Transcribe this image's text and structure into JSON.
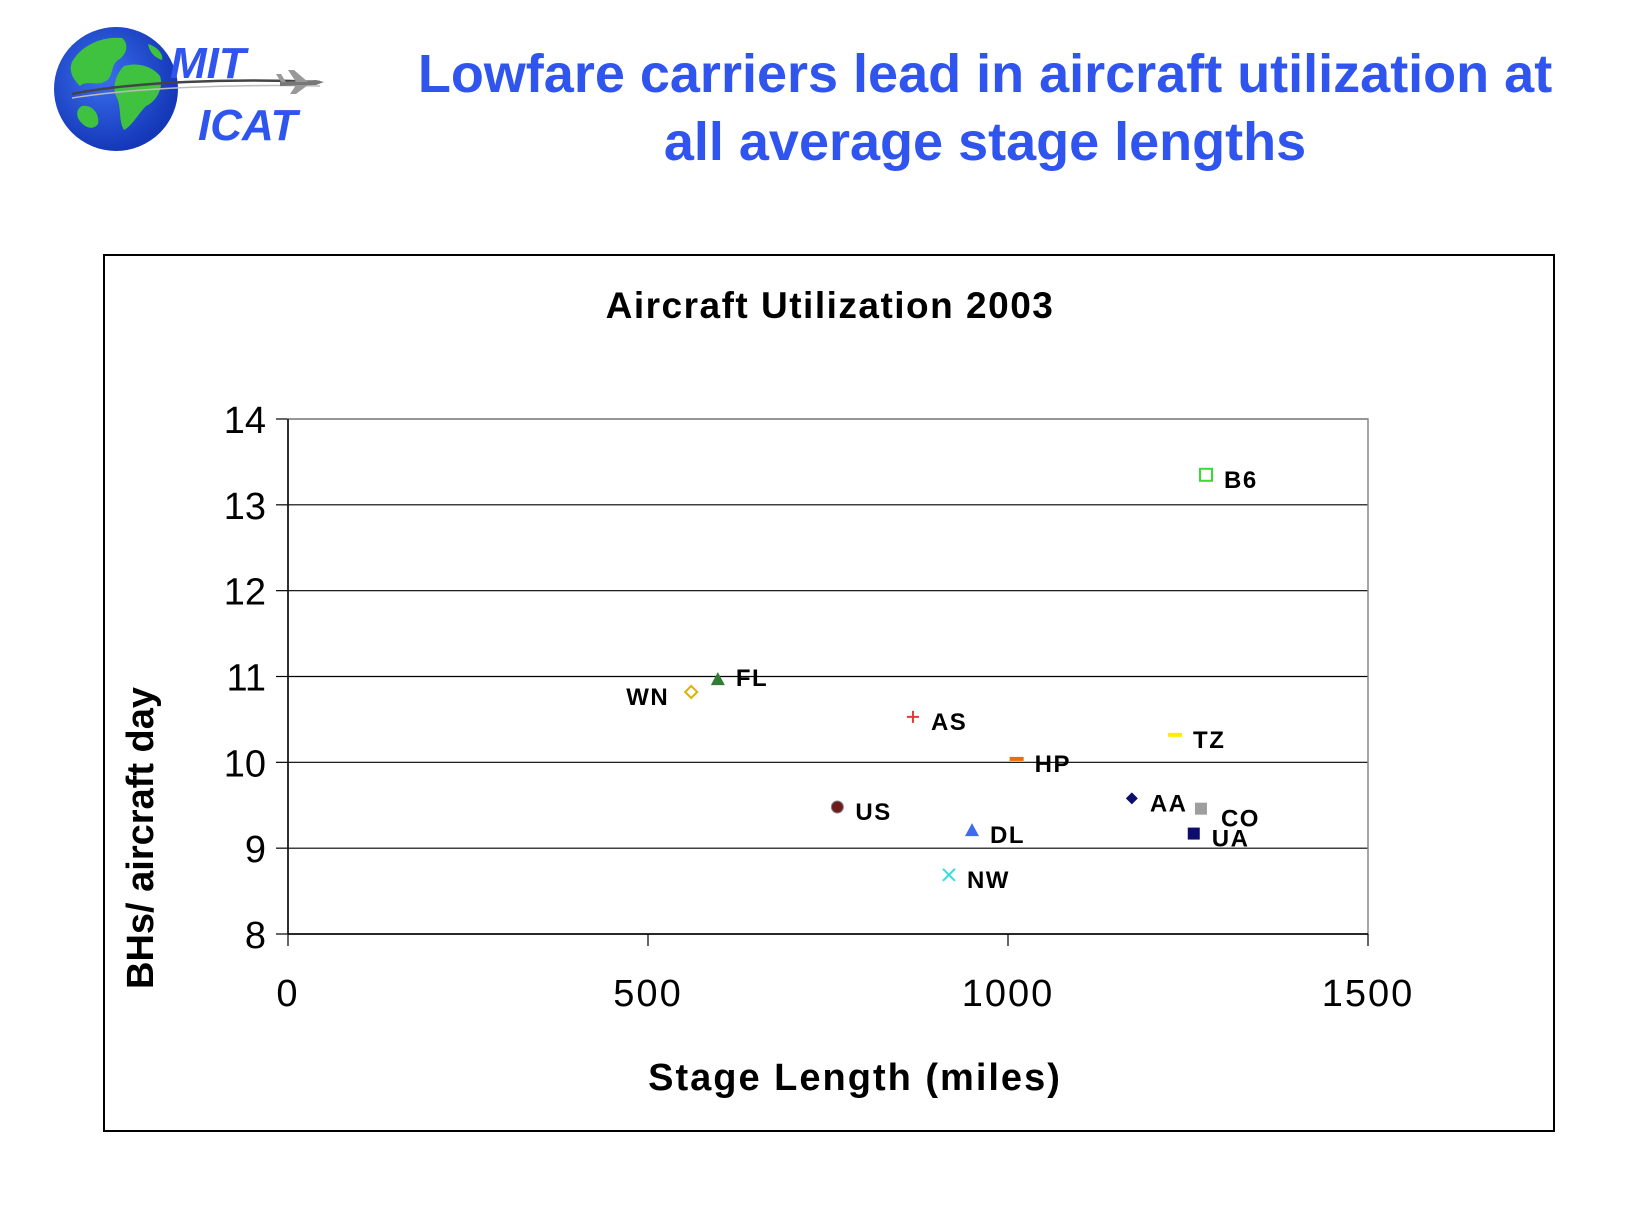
{
  "logo": {
    "line1": "MIT",
    "line2": "ICAT"
  },
  "slide": {
    "title_line1": "Lowfare carriers lead in aircraft utilization at",
    "title_line2": "all average stage lengths"
  },
  "chart_data": {
    "type": "scatter",
    "title": "Aircraft Utilization 2003",
    "xlabel": "Stage Length (miles)",
    "ylabel": "BHs/ aircraft day",
    "xlim": [
      0,
      1500
    ],
    "ylim": [
      8,
      14
    ],
    "xticks": [
      "0",
      "500",
      "1000",
      "1500"
    ],
    "yticks": [
      "8",
      "9",
      "10",
      "11",
      "12",
      "13",
      "14"
    ],
    "grid": "horizontal",
    "points": [
      {
        "label": "B6",
        "x": 1275,
        "y": 13.35,
        "marker": "open-square",
        "color": "#33dd33"
      },
      {
        "label": "WN",
        "x": 560,
        "y": 10.82,
        "marker": "open-diamond",
        "color": "#e0b000"
      },
      {
        "label": "FL",
        "x": 597,
        "y": 10.97,
        "marker": "triangle",
        "color": "#2e7d32"
      },
      {
        "label": "AS",
        "x": 868,
        "y": 10.53,
        "marker": "plus",
        "color": "#e53935"
      },
      {
        "label": "TZ",
        "x": 1232,
        "y": 10.32,
        "marker": "dash",
        "color": "#ffee00"
      },
      {
        "label": "HP",
        "x": 1012,
        "y": 10.04,
        "marker": "dash",
        "color": "#ef6c00"
      },
      {
        "label": "US",
        "x": 763,
        "y": 9.48,
        "marker": "circle",
        "color": "#6d1b1b"
      },
      {
        "label": "AA",
        "x": 1172,
        "y": 9.58,
        "marker": "diamond",
        "color": "#0d0d6b"
      },
      {
        "label": "CO",
        "x": 1268,
        "y": 9.46,
        "marker": "square",
        "color": "#9e9e9e"
      },
      {
        "label": "DL",
        "x": 950,
        "y": 9.21,
        "marker": "triangle",
        "color": "#3d6cf0"
      },
      {
        "label": "UA",
        "x": 1258,
        "y": 9.17,
        "marker": "square",
        "color": "#0d0d6b"
      },
      {
        "label": "NW",
        "x": 918,
        "y": 8.69,
        "marker": "x",
        "color": "#33dddd"
      }
    ]
  }
}
